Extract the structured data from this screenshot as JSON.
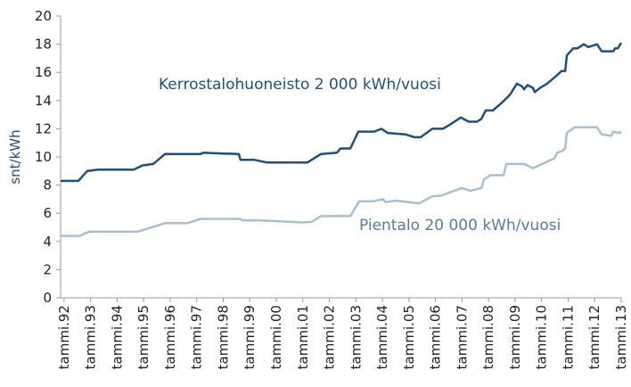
{
  "chart_data": {
    "type": "line",
    "ylabel": "snt/kWh",
    "xlim": [
      1991.87,
      2013.0
    ],
    "ylim": [
      0,
      20
    ],
    "yticks": [
      0,
      2,
      4,
      6,
      8,
      10,
      12,
      14,
      16,
      18,
      20
    ],
    "xticks": [
      {
        "value": 1992,
        "label": "tammi.92"
      },
      {
        "value": 1993,
        "label": "tammi.93"
      },
      {
        "value": 1994,
        "label": "tammi.94"
      },
      {
        "value": 1995,
        "label": "tammi.95"
      },
      {
        "value": 1996,
        "label": "tammi.96"
      },
      {
        "value": 1997,
        "label": "tammi.97"
      },
      {
        "value": 1998,
        "label": "tammi.98"
      },
      {
        "value": 1999,
        "label": "tammi.99"
      },
      {
        "value": 2000,
        "label": "tammi.00"
      },
      {
        "value": 2001,
        "label": "tammi.01"
      },
      {
        "value": 2002,
        "label": "tammi.02"
      },
      {
        "value": 2003,
        "label": "tammi.03"
      },
      {
        "value": 2004,
        "label": "tammi.04"
      },
      {
        "value": 2005,
        "label": "tammi.05"
      },
      {
        "value": 2006,
        "label": "tammi.06"
      },
      {
        "value": 2007,
        "label": "tammi.07"
      },
      {
        "value": 2008,
        "label": "tammi.08"
      },
      {
        "value": 2009,
        "label": "tammi.09"
      },
      {
        "value": 2010,
        "label": "tammi.10"
      },
      {
        "value": 2011,
        "label": "tammi.11"
      },
      {
        "value": 2012,
        "label": "tammi.12"
      },
      {
        "value": 2013,
        "label": "tammi.13"
      }
    ],
    "grid": false,
    "series": [
      {
        "name": "Kerrostalohuoneisto 2 000 kWh/vuosi",
        "color": "#1b4f86",
        "x": [
          1991.87,
          1992.54,
          1992.87,
          1993.28,
          1994.62,
          1994.96,
          1995.36,
          1995.8,
          1997.14,
          1997.24,
          1998.59,
          1998.65,
          1999.16,
          1999.66,
          2001.17,
          2001.68,
          2002.28,
          2002.42,
          2002.79,
          2003.09,
          2003.69,
          2003.96,
          2004.2,
          2004.87,
          2005.21,
          2005.44,
          2005.88,
          2006.28,
          2006.55,
          2006.95,
          2007.26,
          2007.56,
          2007.73,
          2007.89,
          2008.16,
          2008.47,
          2008.8,
          2009.07,
          2009.27,
          2009.34,
          2009.47,
          2009.67,
          2009.74,
          2009.94,
          2010.21,
          2010.58,
          2010.75,
          2010.89,
          2010.95,
          2011.19,
          2011.35,
          2011.59,
          2011.76,
          2012.09,
          2012.26,
          2012.7,
          2012.77,
          2012.87,
          2013.0
        ],
        "values": [
          8.3,
          8.3,
          9.0,
          9.1,
          9.1,
          9.4,
          9.5,
          10.2,
          10.2,
          10.3,
          10.2,
          9.8,
          9.8,
          9.6,
          9.6,
          10.2,
          10.3,
          10.6,
          10.6,
          11.8,
          11.8,
          12.0,
          11.7,
          11.6,
          11.4,
          11.4,
          12.0,
          12.0,
          12.3,
          12.8,
          12.5,
          12.5,
          12.7,
          13.3,
          13.3,
          13.8,
          14.4,
          15.2,
          15.0,
          14.8,
          15.1,
          14.9,
          14.6,
          14.9,
          15.2,
          15.8,
          16.1,
          16.1,
          17.2,
          17.7,
          17.7,
          18.0,
          17.8,
          18.0,
          17.5,
          17.5,
          17.7,
          17.7,
          18.1
        ]
      },
      {
        "name": "Pientalo 20 000 kWh/vuosi",
        "color": "#a7bfd4",
        "x": [
          1991.87,
          1992.6,
          1992.94,
          1994.79,
          1995.8,
          1996.64,
          1997.14,
          1998.65,
          1998.72,
          1999.33,
          2001.01,
          2001.34,
          2001.68,
          2002.79,
          2003.12,
          2003.63,
          2004.03,
          2004.1,
          2004.53,
          2005.37,
          2005.88,
          2006.21,
          2006.99,
          2007.32,
          2007.73,
          2007.83,
          2008.06,
          2008.57,
          2008.67,
          2009.34,
          2009.67,
          2010.48,
          2010.58,
          2010.75,
          2010.89,
          2010.95,
          2011.25,
          2012.09,
          2012.26,
          2012.63,
          2012.7,
          2012.93,
          2013.0
        ],
        "values": [
          4.4,
          4.4,
          4.7,
          4.7,
          5.3,
          5.3,
          5.6,
          5.6,
          5.5,
          5.5,
          5.35,
          5.4,
          5.8,
          5.8,
          6.85,
          6.85,
          7.0,
          6.8,
          6.9,
          6.7,
          7.2,
          7.25,
          7.8,
          7.6,
          7.8,
          8.4,
          8.7,
          8.7,
          9.5,
          9.5,
          9.2,
          9.9,
          10.3,
          10.4,
          10.6,
          11.7,
          12.1,
          12.1,
          11.6,
          11.5,
          11.8,
          11.7,
          11.8
        ]
      }
    ]
  }
}
